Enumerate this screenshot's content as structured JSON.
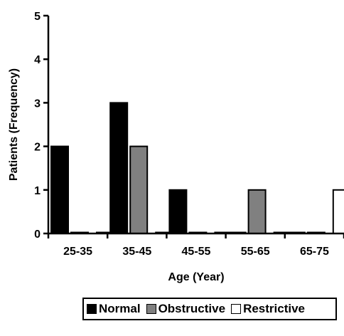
{
  "chart_data": {
    "type": "bar",
    "categories": [
      "25-35",
      "35-45",
      "45-55",
      "55-65",
      "65-75"
    ],
    "series": [
      {
        "name": "Normal",
        "values": [
          2,
          3,
          1,
          0,
          0
        ],
        "color": "#000000"
      },
      {
        "name": "Obstructive",
        "values": [
          0,
          2,
          0,
          1,
          0
        ],
        "color": "#808080"
      },
      {
        "name": "Restrictive",
        "values": [
          0,
          0,
          0,
          0,
          1
        ],
        "color": "#ffffff"
      }
    ],
    "xlabel": "Age (Year)",
    "ylabel": "Patients (Frequency)",
    "ylim": [
      0,
      5
    ],
    "yticks": [
      0,
      1,
      2,
      3,
      4,
      5
    ],
    "grid": false,
    "legend_position": "bottom"
  }
}
